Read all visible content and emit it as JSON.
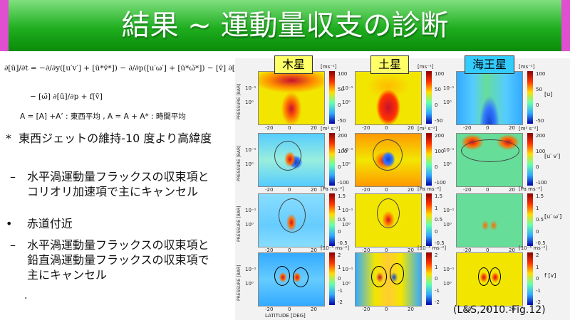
{
  "slide": {
    "title": "結果 ~ 運動量収支の診断",
    "equation": {
      "line1": "∂[ū]/∂t = −∂/∂y([u′v′] + [ū*v̄*]) − ∂/∂p([u′ω′] + [ū*ω̄*]) − [v̄] ∂[ū]/∂y",
      "line2": "− [ω̄] ∂[ū]/∂p + f[v̄]"
    },
    "averaging_definition": "A = [A] +A’ :  東西平均 , A = A + A* :  時間平均",
    "bullets": [
      {
        "marker": "*",
        "text": "東西ジェットの維持-10 度より高緯度"
      },
      {
        "marker": "–",
        "text": "水平渦運動量フラックスの収束項とコリオリ加速項で主にキャンセル"
      },
      {
        "marker": "•",
        "text": "赤道付近"
      },
      {
        "marker": "–",
        "text": "水平渦運動量フラックスの収束項と鉛直渦運動量フラックスの収束項で主にキャンセル"
      }
    ],
    "trailing_mark": "."
  },
  "figure": {
    "planet_labels": [
      {
        "text": "木星",
        "color": "#ffff66"
      },
      {
        "text": "土星",
        "color": "#ffff66"
      },
      {
        "text": "海王星",
        "color": "#33ccff"
      }
    ],
    "row_labels": [
      "[u]",
      "[u′ v′]",
      "[u′ ω′]",
      "f [v]"
    ],
    "units": [
      [
        "[ms⁻¹]",
        "[ms⁻¹]",
        "[ms⁻¹]"
      ],
      [
        "[m² s⁻²]",
        "[m² s⁻²]",
        "[m² s⁻²]"
      ],
      [
        "[Pa ms⁻²]",
        "[Pa ms⁻²]",
        "[Pa ms⁻²]"
      ],
      [
        "[10⁻⁶ ms⁻²]",
        "[10⁻⁶ ms⁻²]",
        "[10⁻⁶ ms⁻²]"
      ]
    ],
    "y_axis_label": "PRESSURE [BAR]",
    "x_axis_label": "LATITUDE [DEG]",
    "x_ticks": [
      "-20",
      "0",
      "20"
    ],
    "y_ticks": [
      "10⁻¹",
      "10⁰"
    ],
    "colorbar_ticks": [
      [
        "100",
        "50",
        "0",
        "-50"
      ],
      [
        "200",
        "100",
        "0",
        "-100"
      ],
      [
        "1.5",
        "1",
        "0.5",
        "0",
        "-0.5"
      ],
      [
        "2",
        "1",
        "0",
        "-1",
        "-2"
      ]
    ],
    "colors": {
      "red": "#c8102e",
      "yellow": "#f2e600",
      "green": "#66dd99",
      "blue": "#1144cc"
    },
    "citation": "(L&S,2010. Fig.12)"
  }
}
